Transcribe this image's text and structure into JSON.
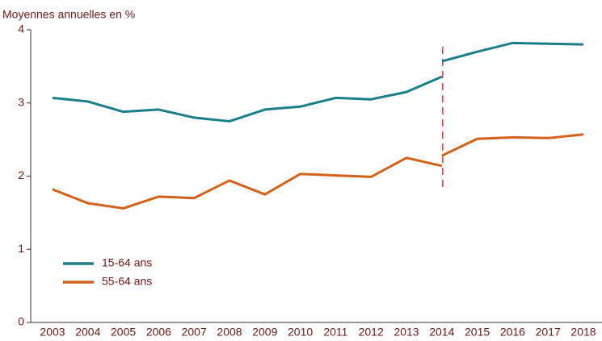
{
  "chart_data": {
    "type": "line",
    "ylabel": "Moyennes annuelles en %",
    "categories": [
      "2003",
      "2004",
      "2005",
      "2006",
      "2007",
      "2008",
      "2009",
      "2010",
      "2011",
      "2012",
      "2013",
      "2014",
      "2015",
      "2016",
      "2017",
      "2018"
    ],
    "series": [
      {
        "name": "15-64 ans",
        "color": "#1a7f8a",
        "values_old": [
          3.07,
          3.02,
          2.88,
          2.91,
          2.8,
          2.75,
          2.91,
          2.95,
          3.07,
          3.05,
          3.15,
          3.36,
          null,
          null,
          null,
          null
        ],
        "values_new": [
          null,
          null,
          null,
          null,
          null,
          null,
          null,
          null,
          null,
          null,
          null,
          3.57,
          3.7,
          3.82,
          3.81,
          3.8
        ]
      },
      {
        "name": "55-64 ans",
        "color": "#d4621a",
        "values_old": [
          1.82,
          1.63,
          1.56,
          1.72,
          1.7,
          1.94,
          1.75,
          2.03,
          2.01,
          1.99,
          2.25,
          2.14,
          null,
          null,
          null,
          null
        ],
        "values_new": [
          null,
          null,
          null,
          null,
          null,
          null,
          null,
          null,
          null,
          null,
          null,
          2.28,
          2.51,
          2.53,
          2.52,
          2.57
        ]
      }
    ],
    "ylim": [
      0,
      4
    ],
    "yticks": [
      0,
      1,
      2,
      3,
      4
    ],
    "break_at": "2014",
    "break_color": "#e8333a",
    "legend": "lower-left"
  }
}
